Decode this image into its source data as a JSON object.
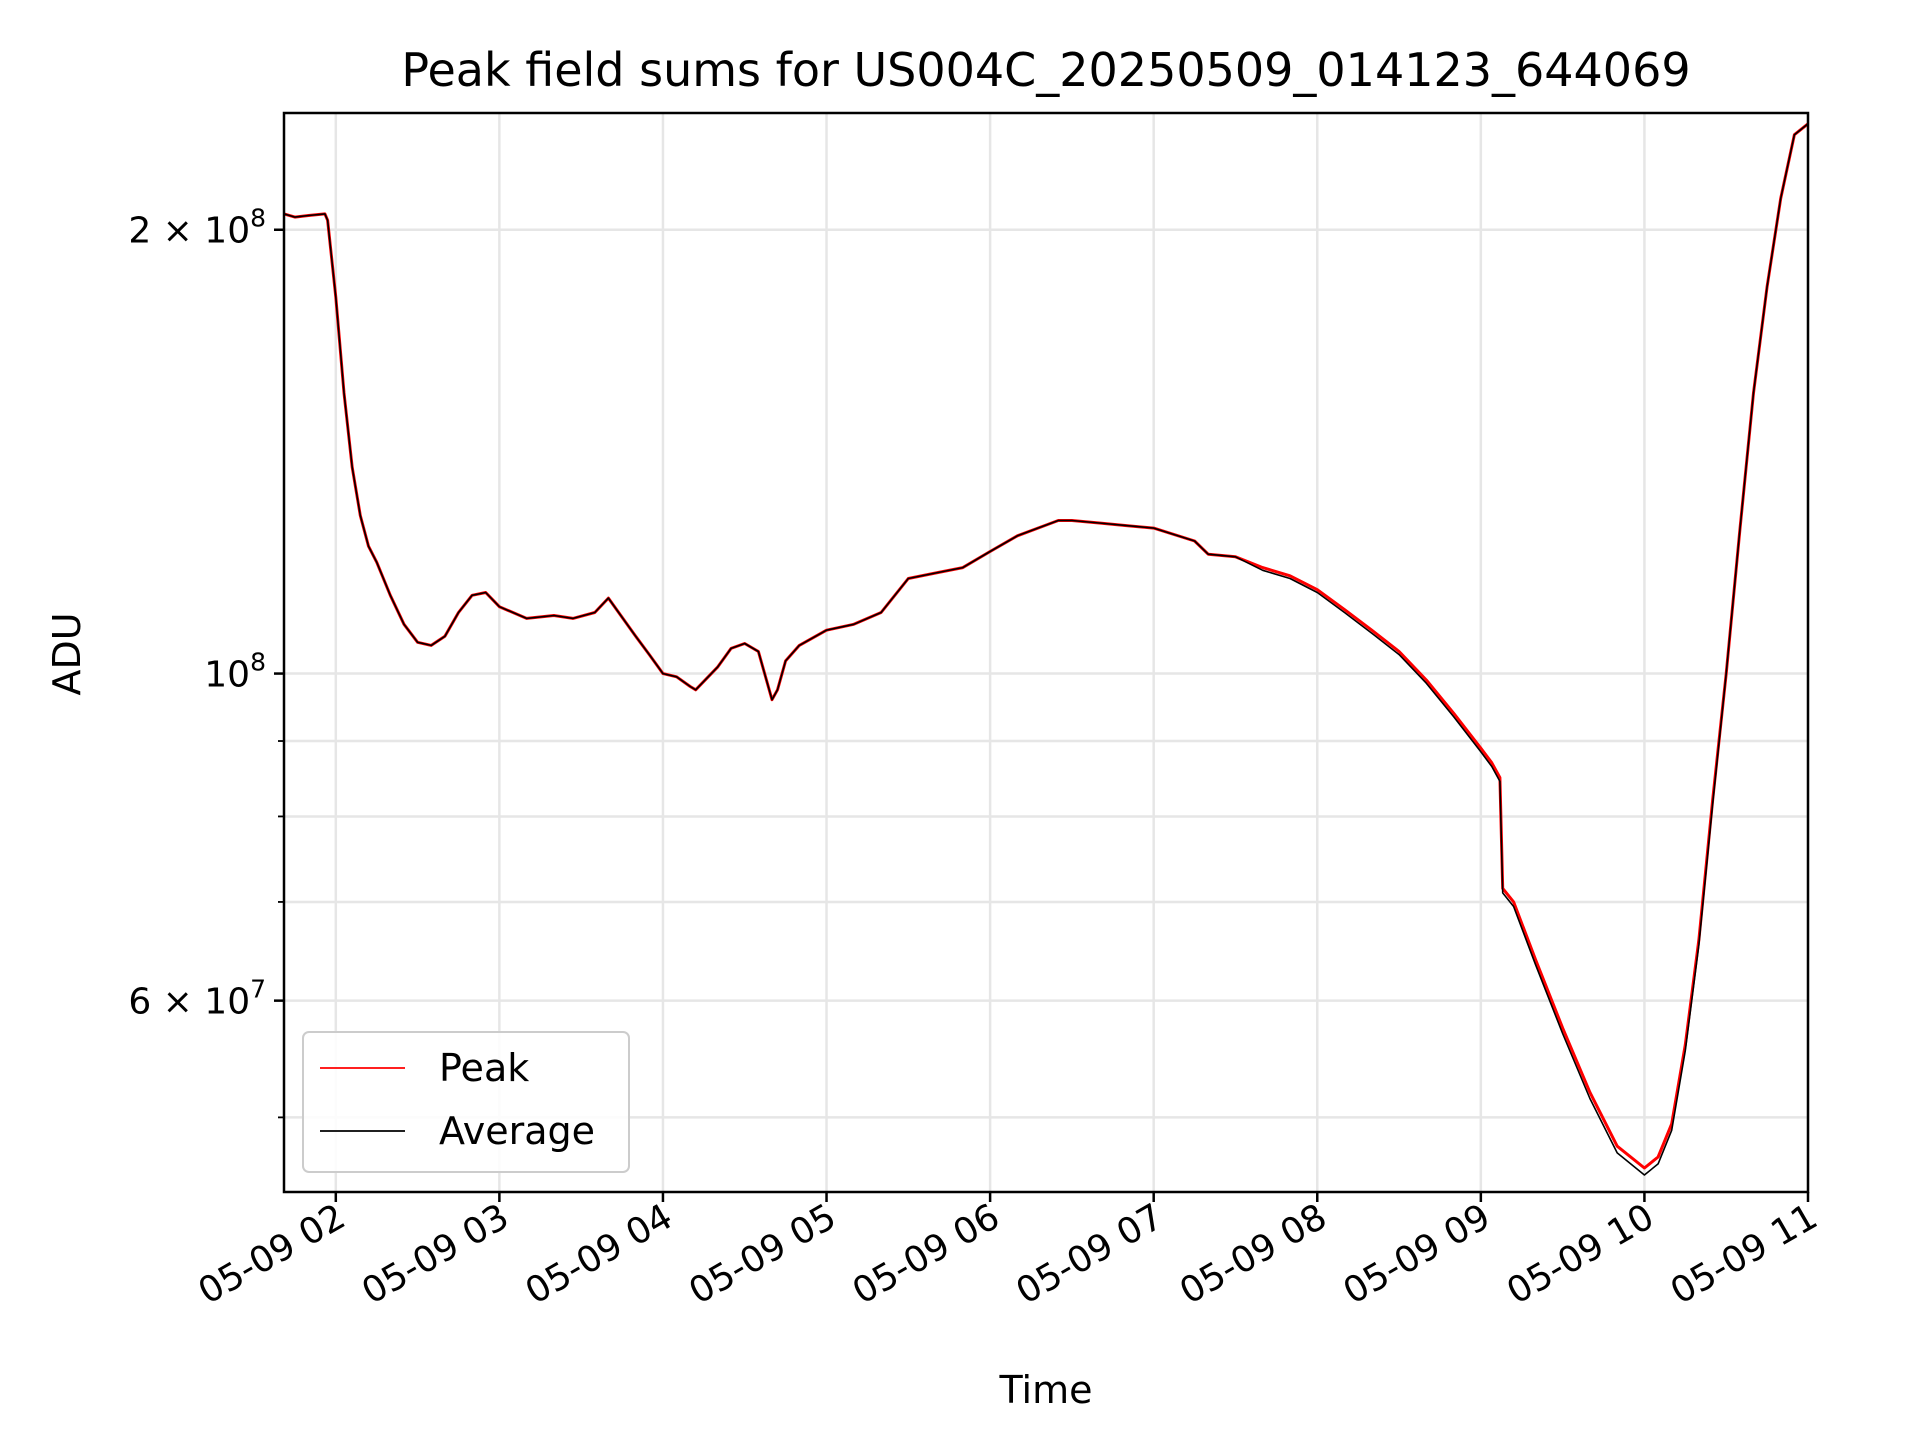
{
  "chart_data": {
    "type": "line",
    "title": "Peak field sums for US004C_20250509_014123_644069",
    "xlabel": "Time",
    "ylabel": "ADU",
    "y_scale": "log",
    "grid": true,
    "legend_position": "lower-left",
    "xlim": [
      "05-09 01:41",
      "05-09 11:00"
    ],
    "ylim": [
      44500000,
      240000000
    ],
    "x_ticks": [
      "05-09 02",
      "05-09 03",
      "05-09 04",
      "05-09 05",
      "05-09 06",
      "05-09 07",
      "05-09 08",
      "05-09 09",
      "05-09 10",
      "05-09 11"
    ],
    "y_ticks": [
      {
        "value": 200000000,
        "mant": "2 × 10",
        "exp": "8"
      },
      {
        "value": 100000000,
        "mant": "10",
        "exp": "8"
      },
      {
        "value": 60000000,
        "mant": "6 × 10",
        "exp": "7"
      }
    ],
    "y_minor_ticks": [
      50000000,
      70000000,
      80000000,
      90000000
    ],
    "x": [
      "05-09 01:41",
      "05-09 01:45",
      "05-09 01:50",
      "05-09 01:56",
      "05-09 01:57",
      "05-09 02:00",
      "05-09 02:03",
      "05-09 02:06",
      "05-09 02:09",
      "05-09 02:12",
      "05-09 02:15",
      "05-09 02:20",
      "05-09 02:25",
      "05-09 02:30",
      "05-09 02:35",
      "05-09 02:40",
      "05-09 02:45",
      "05-09 02:50",
      "05-09 02:55",
      "05-09 03:00",
      "05-09 03:10",
      "05-09 03:20",
      "05-09 03:27",
      "05-09 03:35",
      "05-09 03:40",
      "05-09 03:50",
      "05-09 03:55",
      "05-09 04:00",
      "05-09 04:05",
      "05-09 04:10",
      "05-09 04:12",
      "05-09 04:20",
      "05-09 04:25",
      "05-09 04:30",
      "05-09 04:35",
      "05-09 04:40",
      "05-09 04:42",
      "05-09 04:45",
      "05-09 04:50",
      "05-09 05:00",
      "05-09 05:10",
      "05-09 05:20",
      "05-09 05:30",
      "05-09 05:40",
      "05-09 05:50",
      "05-09 06:00",
      "05-09 06:10",
      "05-09 06:20",
      "05-09 06:25",
      "05-09 06:30",
      "05-09 06:40",
      "05-09 06:50",
      "05-09 07:00",
      "05-09 07:15",
      "05-09 07:20",
      "05-09 07:30",
      "05-09 07:40",
      "05-09 07:50",
      "05-09 08:00",
      "05-09 08:10",
      "05-09 08:20",
      "05-09 08:30",
      "05-09 08:40",
      "05-09 08:50",
      "05-09 09:00",
      "05-09 09:04",
      "05-09 09:07",
      "05-09 09:08",
      "05-09 09:12",
      "05-09 09:20",
      "05-09 09:30",
      "05-09 09:40",
      "05-09 09:50",
      "05-09 10:00",
      "05-09 10:05",
      "05-09 10:10",
      "05-09 10:15",
      "05-09 10:20",
      "05-09 10:25",
      "05-09 10:30",
      "05-09 10:35",
      "05-09 10:40",
      "05-09 10:45",
      "05-09 10:50",
      "05-09 10:55",
      "05-09 11:00"
    ],
    "series": [
      {
        "name": "Peak",
        "color": "#ff0000",
        "values": [
          205000000,
          204000000,
          204500000,
          205000000,
          203000000,
          180000000,
          155000000,
          138000000,
          128000000,
          122000000,
          119000000,
          113000000,
          108000000,
          105000000,
          104500000,
          106000000,
          110000000,
          113000000,
          113500000,
          111000000,
          109000000,
          109500000,
          109000000,
          110000000,
          112500000,
          106000000,
          103000000,
          100000000,
          99500000,
          98000000,
          97500000,
          101000000,
          104000000,
          104800000,
          103500000,
          96000000,
          97500000,
          102000000,
          104500000,
          107000000,
          108000000,
          110000000,
          116000000,
          117000000,
          118000000,
          121000000,
          124000000,
          126000000,
          127000000,
          127000000,
          126500000,
          126000000,
          125500000,
          123000000,
          120500000,
          120000000,
          118000000,
          116500000,
          114000000,
          110500000,
          107000000,
          103500000,
          99000000,
          94000000,
          89000000,
          87000000,
          85000000,
          71500000,
          70000000,
          64000000,
          57500000,
          52000000,
          47800000,
          46200000,
          47000000,
          49500000,
          56000000,
          66000000,
          82000000,
          100000000,
          125000000,
          155000000,
          183000000,
          210000000,
          232000000,
          236000000
        ]
      },
      {
        "name": "Average",
        "color": "#000000",
        "values": [
          205000000,
          204000000,
          204500000,
          205000000,
          203000000,
          180000000,
          155000000,
          138000000,
          128000000,
          122000000,
          119000000,
          113000000,
          108000000,
          105000000,
          104500000,
          106000000,
          110000000,
          113000000,
          113500000,
          111000000,
          109000000,
          109500000,
          109000000,
          110000000,
          112500000,
          106000000,
          103000000,
          100000000,
          99500000,
          98000000,
          97500000,
          101000000,
          104000000,
          104800000,
          103500000,
          96000000,
          97500000,
          102000000,
          104500000,
          107000000,
          108000000,
          110000000,
          116000000,
          117000000,
          118000000,
          121000000,
          124000000,
          126000000,
          127000000,
          127000000,
          126500000,
          126000000,
          125500000,
          123000000,
          120500000,
          120000000,
          117500000,
          116000000,
          113500000,
          110000000,
          106500000,
          103000000,
          98500000,
          93500000,
          88500000,
          86500000,
          84500000,
          71000000,
          69500000,
          63500000,
          57000000,
          51500000,
          47300000,
          45700000,
          46500000,
          49000000,
          55500000,
          65500000,
          81500000,
          100000000,
          125000000,
          155000000,
          183000000,
          210000000,
          232000000,
          236000000
        ]
      }
    ],
    "legend": [
      {
        "label": "Peak",
        "color": "#ff0000"
      },
      {
        "label": "Average",
        "color": "#000000"
      }
    ]
  }
}
